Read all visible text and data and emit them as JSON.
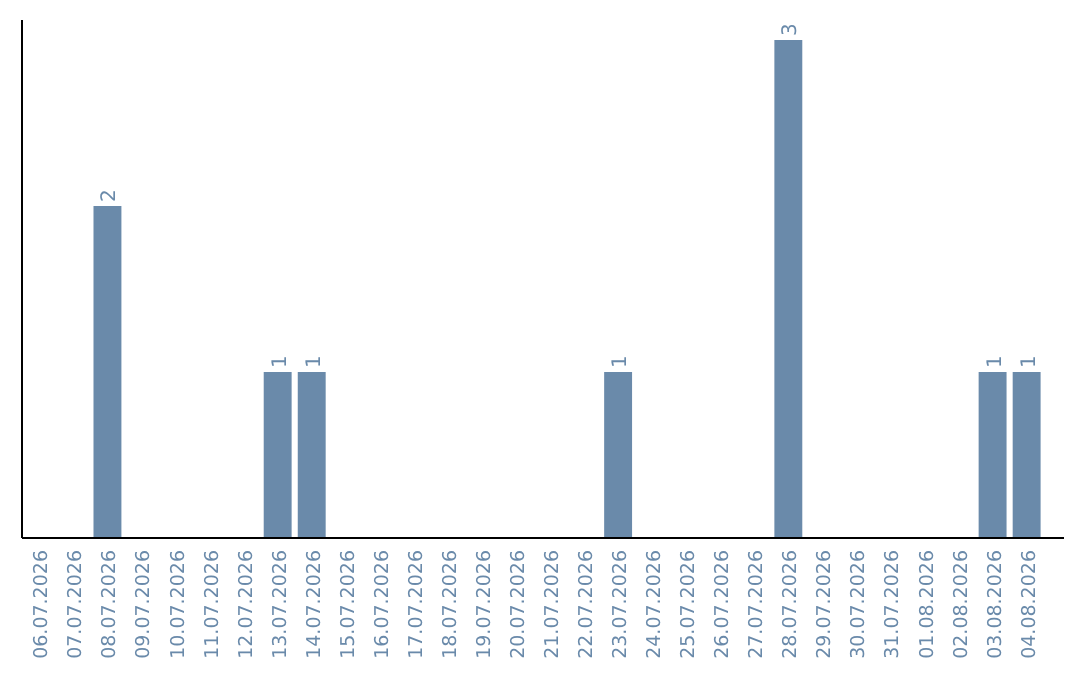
{
  "chart_data": {
    "type": "bar",
    "categories": [
      "06.07.2026",
      "07.07.2026",
      "08.07.2026",
      "09.07.2026",
      "10.07.2026",
      "11.07.2026",
      "12.07.2026",
      "13.07.2026",
      "14.07.2026",
      "15.07.2026",
      "16.07.2026",
      "17.07.2026",
      "18.07.2026",
      "19.07.2026",
      "20.07.2026",
      "21.07.2026",
      "22.07.2026",
      "23.07.2026",
      "24.07.2026",
      "25.07.2026",
      "26.07.2026",
      "27.07.2026",
      "28.07.2026",
      "29.07.2026",
      "30.07.2026",
      "31.07.2026",
      "01.08.2026",
      "02.08.2026",
      "03.08.2026",
      "04.08.2026"
    ],
    "values": [
      0,
      0,
      2,
      0,
      0,
      0,
      0,
      1,
      1,
      0,
      0,
      0,
      0,
      0,
      0,
      0,
      0,
      1,
      0,
      0,
      0,
      0,
      3,
      0,
      0,
      0,
      0,
      0,
      1,
      1
    ],
    "value_labels": [
      null,
      null,
      "2",
      null,
      null,
      null,
      null,
      "1",
      "1",
      null,
      null,
      null,
      null,
      null,
      null,
      null,
      null,
      "1",
      null,
      null,
      null,
      null,
      "3",
      null,
      null,
      null,
      null,
      null,
      "1",
      "1"
    ],
    "color": "#6a8aaa",
    "tick_labels": "x"
  }
}
